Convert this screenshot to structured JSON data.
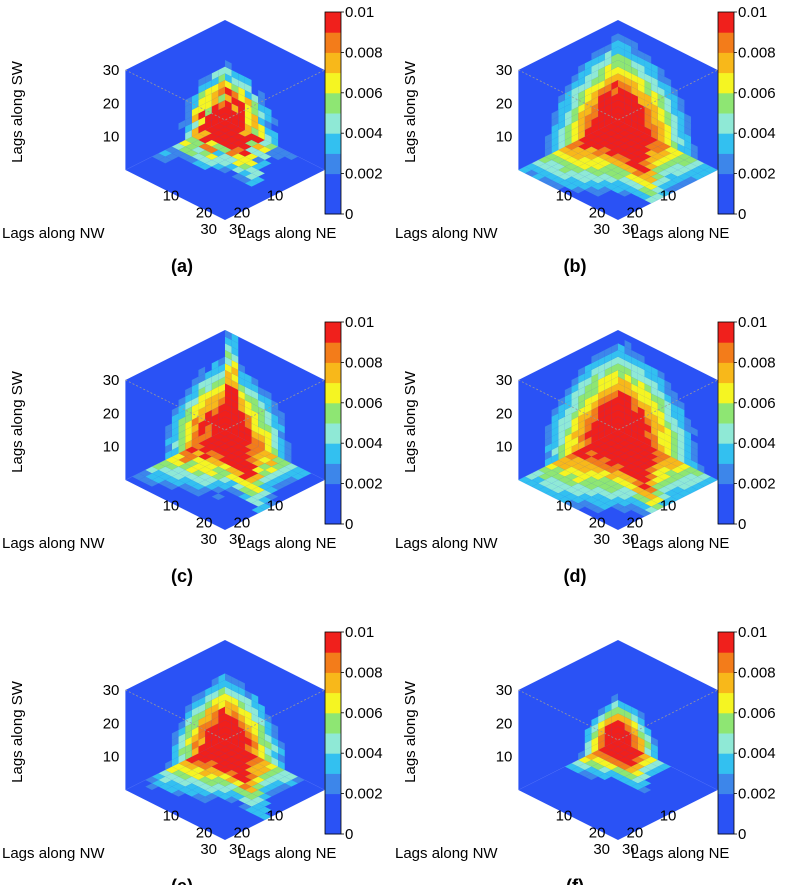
{
  "chart_data": {
    "type": "heatmap",
    "description_note": "Six 3-D isometric heatmaps (cube corner views) of lag correlation along NW, NE and SW axes",
    "colorbar": {
      "ticks": [
        "0.01",
        "0.008",
        "0.006",
        "0.004",
        "0.002",
        "0"
      ],
      "range": [
        0,
        0.01
      ],
      "bins": [
        {
          "min": 0,
          "max": 0.001,
          "color": "#2a52f5"
        },
        {
          "min": 0.001,
          "max": 0.002,
          "color": "#2a52f5"
        },
        {
          "min": 0.002,
          "max": 0.003,
          "color": "#3d86ea"
        },
        {
          "min": 0.003,
          "max": 0.004,
          "color": "#33c0f0"
        },
        {
          "min": 0.004,
          "max": 0.005,
          "color": "#8fe9d6"
        },
        {
          "min": 0.005,
          "max": 0.006,
          "color": "#8ee673"
        },
        {
          "min": 0.006,
          "max": 0.007,
          "color": "#f5f522"
        },
        {
          "min": 0.007,
          "max": 0.008,
          "color": "#f8b81a"
        },
        {
          "min": 0.008,
          "max": 0.009,
          "color": "#f37c1a"
        },
        {
          "min": 0.009,
          "max": 0.01,
          "color": "#f0201c"
        }
      ]
    },
    "axes": {
      "sw_label": "Lags along SW",
      "nw_label": "Lags along NW",
      "ne_label": "Lags along NE",
      "sw_ticks": [
        "30",
        "20",
        "10"
      ],
      "nw_ticks": [
        "10",
        "20",
        "30"
      ],
      "ne_ticks": [
        "10",
        "20",
        "30"
      ],
      "lag_range": [
        0,
        30
      ]
    },
    "panels": [
      {
        "label": "(a)",
        "peak_extent": 9,
        "noise": 0.7,
        "seed": 11,
        "streak": "blocky"
      },
      {
        "label": "(b)",
        "peak_extent": 14,
        "noise": 0.15,
        "seed": 23,
        "streak": "smooth"
      },
      {
        "label": "(c)",
        "peak_extent": 12,
        "noise": 0.3,
        "seed": 37,
        "streak": "upward"
      },
      {
        "label": "(d)",
        "peak_extent": 15,
        "noise": 0.15,
        "seed": 41,
        "streak": "smooth"
      },
      {
        "label": "(e)",
        "peak_extent": 11,
        "noise": 0.2,
        "seed": 53,
        "streak": "ne"
      },
      {
        "label": "(f)",
        "peak_extent": 7,
        "noise": 0.1,
        "seed": 67,
        "streak": "small"
      }
    ]
  }
}
